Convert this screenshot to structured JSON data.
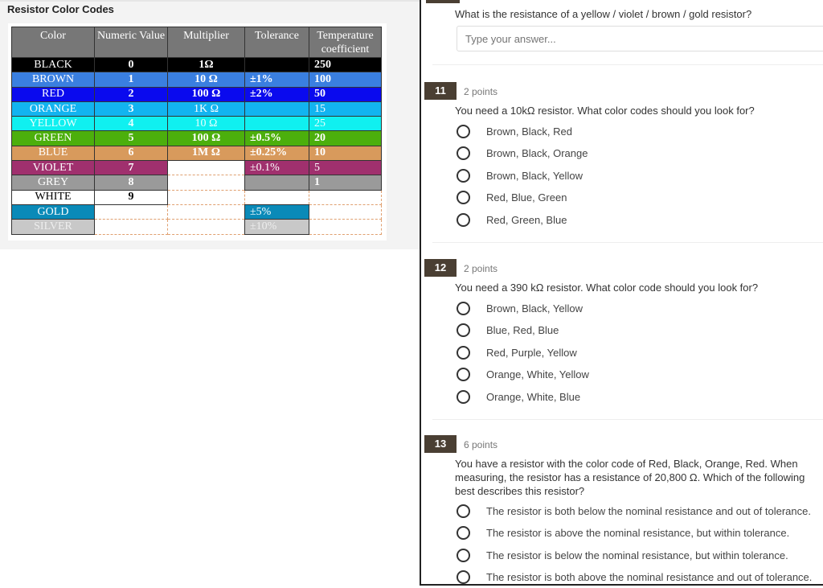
{
  "left": {
    "title": "Resistor Color Codes",
    "table": {
      "headers": [
        "Color",
        "Numeric Value",
        "Multiplier",
        "Tolerance",
        "Temperature coefficient"
      ],
      "rows": [
        {
          "color": "BLACK",
          "value": "0",
          "multiplier": "1Ω",
          "tolerance": "",
          "temp": "250",
          "bg": "#000000",
          "fg": "#ffffff"
        },
        {
          "color": "BROWN",
          "value": "1",
          "multiplier": "10 Ω",
          "tolerance": "±1%",
          "temp": "100",
          "bg": "#3a7fe0",
          "fg": "#ffffff"
        },
        {
          "color": "RED",
          "value": "2",
          "multiplier": "100 Ω",
          "tolerance": "±2%",
          "temp": "50",
          "bg": "#0a0aee",
          "fg": "#ffffff"
        },
        {
          "color": "ORANGE",
          "value": "3",
          "multiplier": "1K Ω",
          "tolerance": "",
          "temp": "15",
          "bg": "#12b4f0",
          "fg": "#ffffff"
        },
        {
          "color": "YELLOW",
          "value": "4",
          "multiplier": "10 Ω",
          "tolerance": "",
          "temp": "25",
          "bg": "#10f0f0",
          "fg": "#e8ffff"
        },
        {
          "color": "GREEN",
          "value": "5",
          "multiplier": "100 Ω",
          "tolerance": "±0.5%",
          "temp": "20",
          "bg": "#4caf0c",
          "fg": "#ffffff"
        },
        {
          "color": "BLUE",
          "value": "6",
          "multiplier": "1M Ω",
          "tolerance": "±0.25%",
          "temp": "10",
          "bg": "#d89a5c",
          "fg": "#ffffff"
        },
        {
          "color": "VIOLET",
          "value": "7",
          "multiplier": null,
          "tolerance": "±0.1%",
          "temp": "5",
          "bg": "#a0306e",
          "fg": "#ffffff"
        },
        {
          "color": "GREY",
          "value": "8",
          "multiplier": null,
          "tolerance": "",
          "temp": "1",
          "bg": "#9a9a9a",
          "fg": "#ffffff"
        },
        {
          "color": "WHITE",
          "value": "9",
          "multiplier": null,
          "tolerance": null,
          "temp": null,
          "bg": "#ffffff",
          "fg": "#000000"
        },
        {
          "color": "GOLD",
          "value": null,
          "multiplier": null,
          "tolerance": "±5%",
          "temp": null,
          "bg": "#0a8ab8",
          "fg": "#ffffff"
        },
        {
          "color": "SILVER",
          "value": null,
          "multiplier": null,
          "tolerance": "±10%",
          "temp": null,
          "bg": "#c8c8c8",
          "fg": "#eeeeee"
        }
      ]
    }
  },
  "quiz": {
    "q10": {
      "text": "What is the resistance of a yellow / violet / brown / gold resistor?",
      "placeholder": "Type your answer..."
    },
    "q11": {
      "number": "11",
      "points": "2 points",
      "text": "You need a 10kΩ resistor. What color codes should you look for?",
      "options": [
        "Brown, Black, Red",
        "Brown, Black, Orange",
        "Brown, Black, Yellow",
        "Red, Blue, Green",
        "Red, Green, Blue"
      ]
    },
    "q12": {
      "number": "12",
      "points": "2 points",
      "text": "You need a 390 kΩ resistor. What color code should you look for?",
      "options": [
        "Brown, Black, Yellow",
        "Blue, Red, Blue",
        "Red, Purple, Yellow",
        "Orange, White, Yellow",
        "Orange, White, Blue"
      ]
    },
    "q13": {
      "number": "13",
      "points": "6 points",
      "text": "You have a resistor with the color code of Red, Black, Orange, Red. When measuring, the resistor has a resistance of 20,800 Ω. Which of the following best describes this resistor?",
      "options": [
        "The resistor is both below the nominal resistance and out of tolerance.",
        "The resistor is above the nominal resistance, but within tolerance.",
        "The resistor is below the nominal resistance, but within tolerance.",
        "The resistor is both above the nominal resistance and out of tolerance."
      ]
    }
  }
}
